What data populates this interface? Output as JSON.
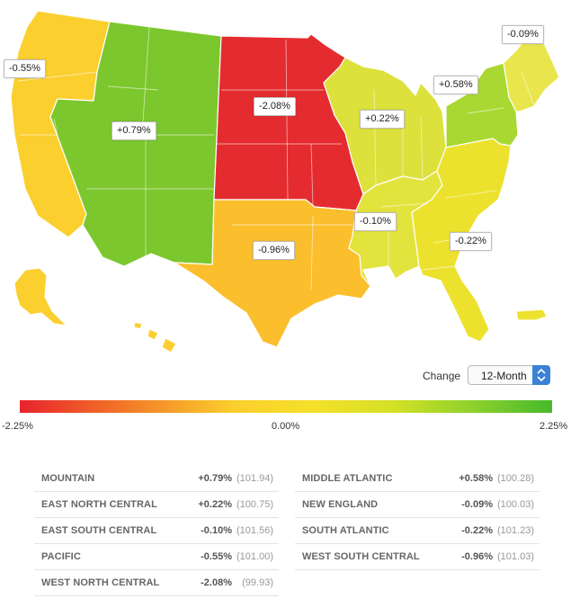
{
  "map_labels": {
    "pacific": "-0.55%",
    "mountain": "+0.79%",
    "west_north_central": "-2.08%",
    "east_north_central": "+0.22%",
    "middle_atlantic": "+0.58%",
    "new_england": "-0.09%",
    "east_south_central": "-0.10%",
    "south_atlantic": "-0.22%",
    "west_south_central": "-0.96%"
  },
  "region_colors": {
    "pacific": "#fbcf2e",
    "mountain": "#7cc72d",
    "west_north_central": "#e42c30",
    "east_north_central": "#dde13c",
    "middle_atlantic": "#a9d832",
    "new_england": "#e8e64c",
    "east_south_central": "#e3e33e",
    "south_atlantic": "#ece22e",
    "west_south_central": "#fbbf2e"
  },
  "control": {
    "change_label": "Change",
    "selected": "12-Month"
  },
  "legend": {
    "min_label": "-2.25%",
    "mid_label": "0.00%",
    "max_label": "2.25%"
  },
  "table": {
    "left": [
      {
        "name": "MOUNTAIN",
        "change": "+0.79%",
        "index": "(101.94)"
      },
      {
        "name": "EAST NORTH CENTRAL",
        "change": "+0.22%",
        "index": "(100.75)"
      },
      {
        "name": "EAST SOUTH CENTRAL",
        "change": "-0.10%",
        "index": "(101.56)"
      },
      {
        "name": "PACIFIC",
        "change": "-0.55%",
        "index": "(101.00)"
      },
      {
        "name": "WEST NORTH CENTRAL",
        "change": "-2.08%",
        "index": "(99.93)"
      }
    ],
    "right": [
      {
        "name": "MIDDLE ATLANTIC",
        "change": "+0.58%",
        "index": "(100.28)"
      },
      {
        "name": "NEW ENGLAND",
        "change": "-0.09%",
        "index": "(100.03)"
      },
      {
        "name": "SOUTH ATLANTIC",
        "change": "-0.22%",
        "index": "(101.23)"
      },
      {
        "name": "WEST SOUTH CENTRAL",
        "change": "-0.96%",
        "index": "(101.03)"
      }
    ]
  }
}
